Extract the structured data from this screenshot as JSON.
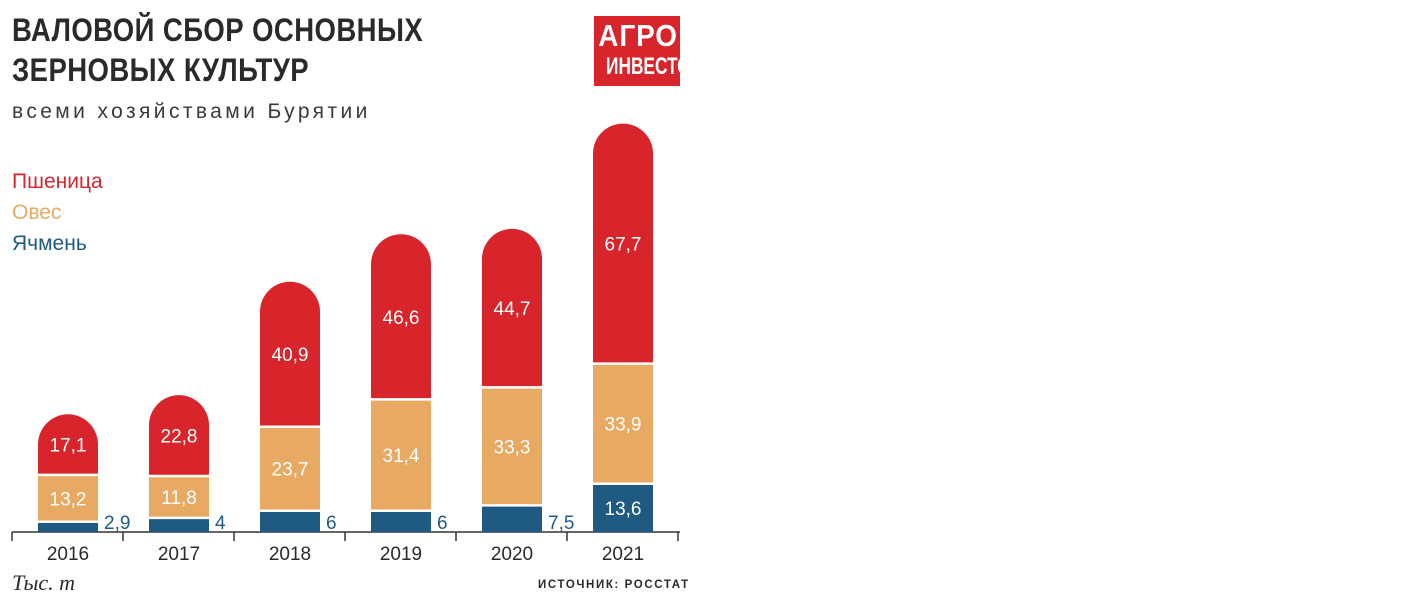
{
  "logo": {
    "line1": "АГРО",
    "line2": "ИНВЕСТОР"
  },
  "chart_data": {
    "type": "bar",
    "stacked": true,
    "title_lines": [
      "ВАЛОВОЙ СБОР ОСНОВНЫХ",
      "ЗЕРНОВЫХ КУЛЬТУР"
    ],
    "subtitle": "всеми хозяйствами Бурятии",
    "unit": "Тыс. т",
    "source": "ИСТОЧНИК: РОССТАТ",
    "categories": [
      "2016",
      "2017",
      "2018",
      "2019",
      "2020",
      "2021"
    ],
    "series": [
      {
        "name": "Ячмень",
        "color": "#1f5a82",
        "values": [
          2.9,
          4,
          6,
          6,
          7.5,
          13.6
        ],
        "labels": [
          "2,9",
          "4",
          "6",
          "6",
          "7,5",
          "13,6"
        ]
      },
      {
        "name": "Овес",
        "color": "#e8aa62",
        "values": [
          13.2,
          11.8,
          23.7,
          31.4,
          33.3,
          33.9
        ],
        "labels": [
          "13,2",
          "11,8",
          "23,7",
          "31,4",
          "33,3",
          "33,9"
        ]
      },
      {
        "name": "Пшеница",
        "color": "#d8242b",
        "values": [
          17.1,
          22.8,
          40.9,
          46.6,
          44.7,
          67.7
        ],
        "labels": [
          "17,1",
          "22,8",
          "40,9",
          "46,6",
          "44,7",
          "67,7"
        ]
      }
    ],
    "legend_order": [
      2,
      1,
      0
    ],
    "legend_position": "top-left",
    "grid": false
  }
}
